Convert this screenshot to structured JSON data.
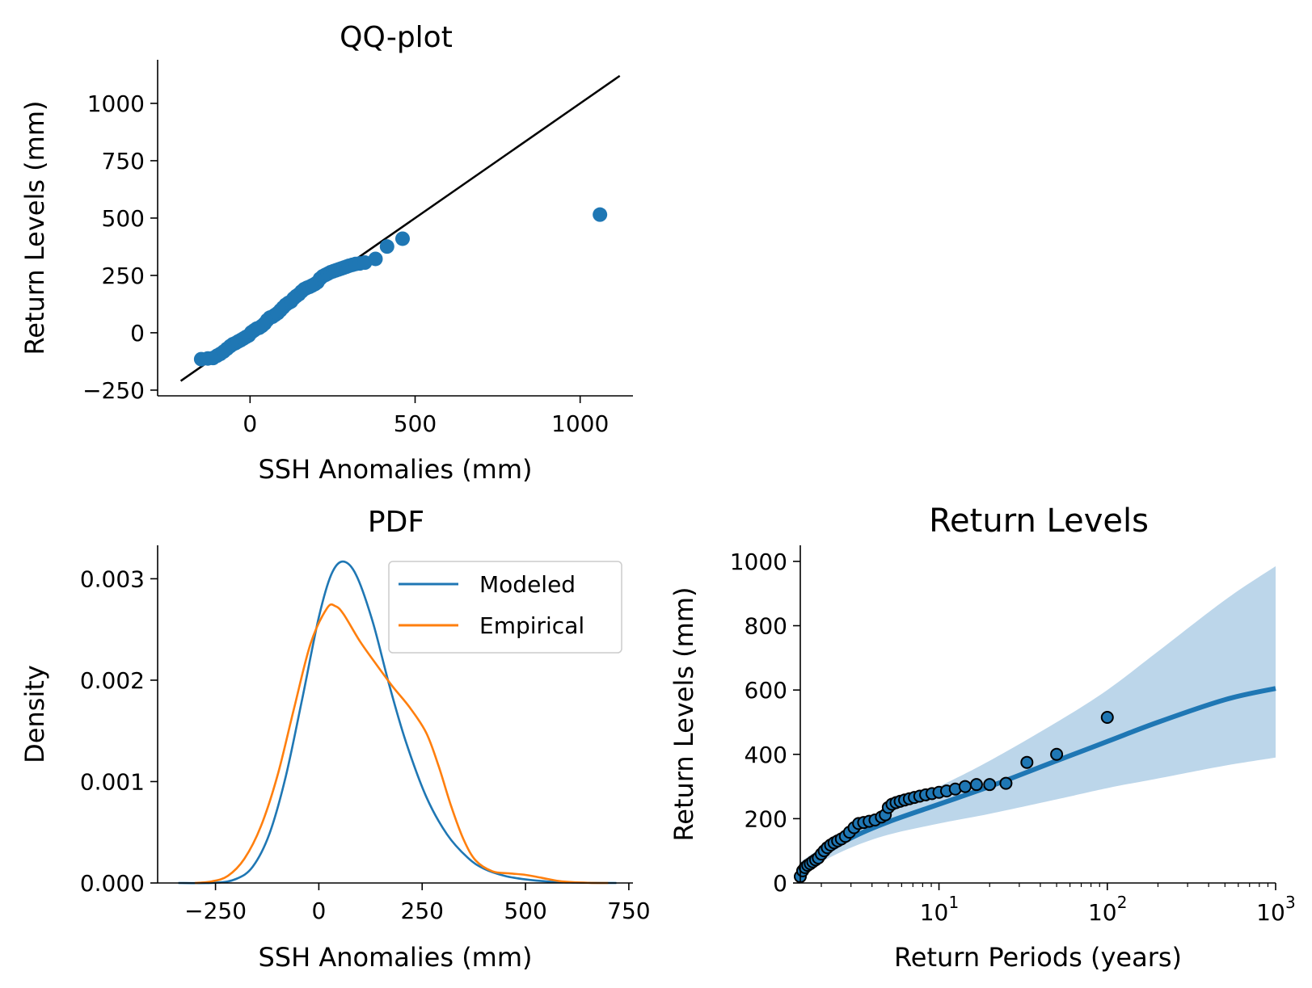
{
  "colors": {
    "blue": "#1f77b4",
    "orange": "#ff7f0e",
    "band": "#bcd6ea",
    "axis": "#000000"
  },
  "chart_data": [
    {
      "type": "scatter",
      "title": "QQ-plot",
      "xlabel": "SSH Anomalies (mm)",
      "ylabel": "Return Levels (mm)",
      "xlim": [
        -280,
        1160
      ],
      "ylim": [
        -275,
        1190
      ],
      "xticks": [
        0,
        500,
        1000
      ],
      "xtick_labels": [
        "0",
        "500",
        "1000"
      ],
      "yticks": [
        -250,
        0,
        250,
        500,
        750,
        1000
      ],
      "ytick_labels": [
        "−250",
        "0",
        "250",
        "500",
        "750",
        "1000"
      ],
      "grid": false,
      "reference_line": {
        "x": [
          -210,
          1120
        ],
        "y": [
          -210,
          1120
        ]
      },
      "points": {
        "x": [
          -148,
          -128,
          -112,
          -100,
          -90,
          -80,
          -70,
          -60,
          -52,
          -44,
          -36,
          -28,
          -20,
          -12,
          -4,
          4,
          12,
          20,
          28,
          36,
          44,
          52,
          60,
          68,
          76,
          84,
          92,
          100,
          108,
          116,
          124,
          132,
          140,
          148,
          156,
          164,
          172,
          180,
          188,
          196,
          204,
          212,
          220,
          228,
          236,
          244,
          252,
          260,
          268,
          276,
          284,
          292,
          300,
          310,
          320,
          332,
          348,
          380,
          415,
          462,
          1060
        ],
        "y": [
          -115,
          -112,
          -110,
          -100,
          -92,
          -82,
          -70,
          -58,
          -50,
          -45,
          -38,
          -32,
          -25,
          -18,
          -12,
          2,
          10,
          18,
          22,
          30,
          40,
          55,
          66,
          70,
          78,
          86,
          98,
          110,
          122,
          130,
          136,
          150,
          160,
          168,
          180,
          190,
          196,
          200,
          206,
          212,
          220,
          236,
          246,
          252,
          258,
          264,
          268,
          272,
          276,
          280,
          284,
          288,
          292,
          296,
          300,
          302,
          306,
          322,
          376,
          410,
          515
        ]
      }
    },
    {
      "type": "line",
      "title": "PDF",
      "xlabel": "SSH Anomalies (mm)",
      "ylabel": "Density",
      "xlim": [
        -390,
        760
      ],
      "ylim": [
        0,
        0.00333
      ],
      "xticks": [
        -250,
        0,
        250,
        500,
        750
      ],
      "xtick_labels": [
        "−250",
        "0",
        "250",
        "500",
        "750"
      ],
      "yticks": [
        0,
        0.001,
        0.002,
        0.003
      ],
      "ytick_labels": [
        "0.000",
        "0.001",
        "0.002",
        "0.003"
      ],
      "grid": false,
      "legend_position": "top-right",
      "series": [
        {
          "name": "Modeled",
          "color": "#1f77b4",
          "x": [
            -340,
            -250,
            -200,
            -160,
            -120,
            -80,
            -40,
            0,
            30,
            58,
            90,
            130,
            170,
            210,
            260,
            310,
            360,
            400,
            450,
            500,
            560,
            620,
            680,
            720
          ],
          "y": [
            0,
            2e-06,
            4e-05,
            0.00016,
            0.00048,
            0.00105,
            0.00182,
            0.00262,
            0.00304,
            0.00317,
            0.00304,
            0.00258,
            0.00196,
            0.0014,
            0.00085,
            0.00048,
            0.00025,
            0.00014,
            7e-05,
            3.5e-05,
            1.3e-05,
            4e-06,
            1e-06,
            0
          ]
        },
        {
          "name": "Empirical",
          "color": "#ff7f0e",
          "x": [
            -300,
            -260,
            -220,
            -180,
            -140,
            -100,
            -60,
            -20,
            20,
            40,
            60,
            100,
            140,
            180,
            220,
            260,
            290,
            320,
            350,
            380,
            420,
            460,
            500,
            540,
            580,
            620,
            660,
            700
          ],
          "y": [
            0,
            1.5e-05,
            7e-05,
            0.00024,
            0.00056,
            0.00106,
            0.00172,
            0.00236,
            0.00271,
            0.00273,
            0.00265,
            0.00238,
            0.00215,
            0.00193,
            0.00173,
            0.00148,
            0.00115,
            0.00076,
            0.00043,
            0.00022,
            0.000115,
            9.5e-05,
            8e-05,
            5e-05,
            2e-05,
            6e-06,
            1e-06,
            0
          ]
        }
      ]
    },
    {
      "type": "line",
      "title": "Return Levels",
      "xlabel": "Return Periods (years)",
      "ylabel": "Return Levels (mm)",
      "xscale": "log",
      "xlim": [
        1.5,
        1000
      ],
      "ylim": [
        0,
        1050
      ],
      "xticks": [
        10,
        100,
        1000
      ],
      "xtick_labels": [
        "10",
        "10",
        "10"
      ],
      "xtick_exponents": [
        "1",
        "2",
        "3"
      ],
      "yticks": [
        0,
        200,
        400,
        600,
        800,
        1000
      ],
      "ytick_labels": [
        "0",
        "200",
        "400",
        "600",
        "800",
        "1000"
      ],
      "grid": false,
      "fit_curve": {
        "x": [
          1.5,
          2,
          3,
          5,
          10,
          20,
          50,
          100,
          200,
          500,
          1000
        ],
        "y": [
          40,
          85,
          140,
          190,
          245,
          300,
          380,
          440,
          500,
          570,
          605
        ]
      },
      "confidence_band": {
        "x": [
          1.5,
          2,
          3,
          5,
          10,
          20,
          50,
          100,
          200,
          500,
          1000
        ],
        "lower": [
          20,
          65,
          110,
          150,
          185,
          215,
          260,
          295,
          325,
          365,
          390
        ],
        "upper": [
          65,
          110,
          170,
          225,
          300,
          380,
          500,
          600,
          720,
          880,
          985
        ]
      },
      "observations": {
        "x": [
          1.5,
          1.55,
          1.6,
          1.66,
          1.72,
          1.78,
          1.85,
          1.92,
          2.0,
          2.08,
          2.17,
          2.27,
          2.38,
          2.5,
          2.63,
          2.78,
          2.94,
          3.13,
          3.33,
          3.57,
          3.85,
          4.17,
          4.55,
          4.8,
          5.0,
          5.26,
          5.56,
          5.88,
          6.25,
          6.67,
          7.14,
          7.69,
          8.33,
          9.09,
          10.0,
          11.1,
          12.5,
          14.3,
          16.7,
          20.0,
          25.0,
          33.3,
          50.0,
          100.0
        ],
        "y": [
          20,
          38,
          48,
          55,
          60,
          66,
          72,
          78,
          90,
          100,
          110,
          118,
          125,
          131,
          137,
          145,
          158,
          172,
          185,
          188,
          192,
          196,
          205,
          212,
          235,
          245,
          250,
          254,
          258,
          262,
          266,
          270,
          274,
          278,
          282,
          286,
          292,
          300,
          306,
          306,
          310,
          375,
          400,
          515
        ]
      }
    }
  ]
}
